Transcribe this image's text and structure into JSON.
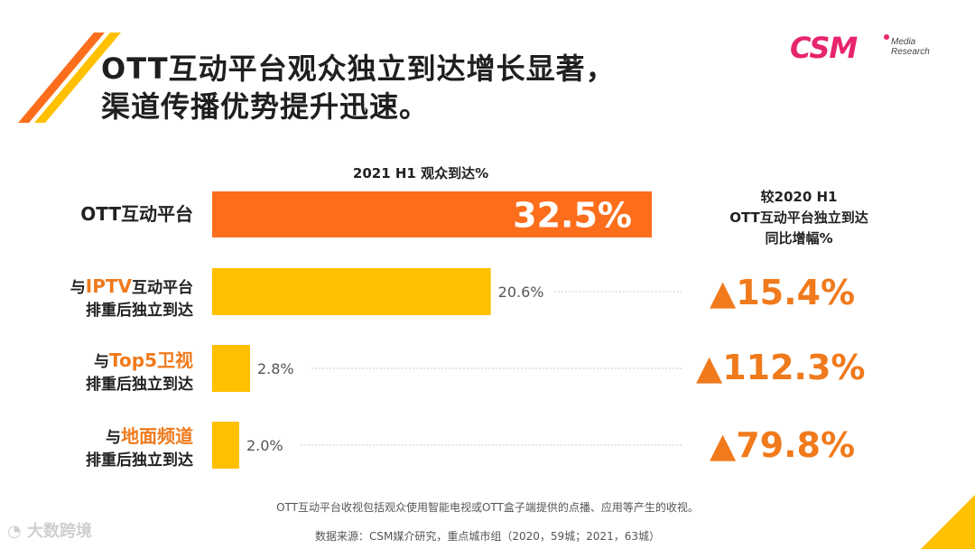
{
  "title": {
    "line1": "OTT互动平台观众独立到达增长显著，",
    "line2": "渠道传播优势提升迅速。"
  },
  "logo": {
    "main": "CSM",
    "sub1": "Media",
    "sub2": "Research"
  },
  "colors": {
    "orange": "#fd6e1c",
    "yellow": "#ffc000",
    "accent": "#f07a1c",
    "brand": "#e8246d"
  },
  "chart_data": {
    "type": "bar",
    "orientation": "horizontal",
    "title": "2021 H1 观众到达%",
    "categories": [
      "OTT互动平台",
      "与IPTV互动平台排重后独立到达",
      "与Top5卫视排重后独立到达",
      "与地面频道排重后独立到达"
    ],
    "values": [
      32.5,
      20.6,
      2.8,
      2.0
    ],
    "value_labels": [
      "32.5%",
      "20.6%",
      "2.8%",
      "2.0%"
    ],
    "growth_header": [
      "较2020 H1",
      "OTT互动平台独立到达",
      "同比增幅%"
    ],
    "growth_values": [
      15.4,
      112.3,
      79.8
    ],
    "growth_labels": [
      "▲15.4%",
      "▲112.3%",
      "▲79.8%"
    ]
  },
  "labels": {
    "r0": "OTT互动平台",
    "r1_pre": "与",
    "r1_hl": "IPTV",
    "r1_post": "互动平台",
    "r1_line2": "排重后独立到达",
    "r2_pre": "与",
    "r2_hl": "Top5卫视",
    "r2_line2": "排重后独立到达",
    "r3_pre": "与",
    "r3_hl": "地面频道",
    "r3_line2": "排重后独立到达"
  },
  "footnote": "OTT互动平台收视包括观众使用智能电视或OTT盒子端提供的点播、应用等产生的收视。",
  "source": "数据来源：CSM媒介研究，重点城市组（2020，59城；2021，63城）",
  "watermark": "大数跨境"
}
